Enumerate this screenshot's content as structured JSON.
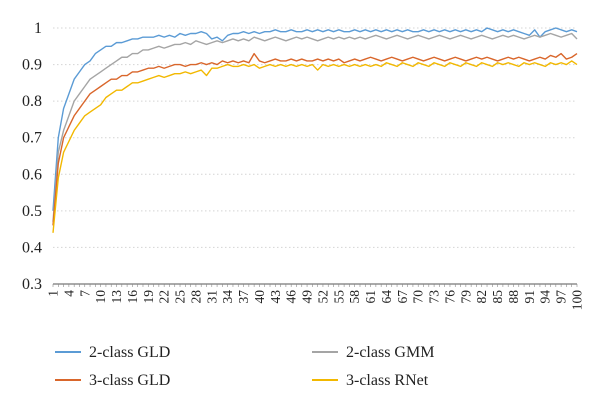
{
  "chart_data": {
    "type": "line",
    "title": "",
    "xlabel": "",
    "ylabel": "",
    "xlim": [
      1,
      100
    ],
    "ylim": [
      0.3,
      1.0
    ],
    "grid": true,
    "legend_position": "bottom",
    "x_tick_labels": [
      "1",
      "4",
      "7",
      "10",
      "13",
      "16",
      "19",
      "22",
      "25",
      "28",
      "31",
      "34",
      "37",
      "40",
      "43",
      "46",
      "49",
      "52",
      "55",
      "58",
      "61",
      "64",
      "67",
      "70",
      "73",
      "76",
      "79",
      "82",
      "85",
      "88",
      "91",
      "94",
      "97",
      "100"
    ],
    "y_tick_labels": [
      "0.3",
      "0.4",
      "0.5",
      "0.6",
      "0.7",
      "0.8",
      "0.9",
      "1"
    ],
    "series": [
      {
        "name": "2-class GLD",
        "color": "#5b9bd5",
        "values": [
          0.5,
          0.7,
          0.78,
          0.82,
          0.86,
          0.88,
          0.9,
          0.91,
          0.93,
          0.94,
          0.95,
          0.95,
          0.96,
          0.96,
          0.965,
          0.97,
          0.97,
          0.975,
          0.975,
          0.975,
          0.98,
          0.975,
          0.98,
          0.975,
          0.985,
          0.98,
          0.985,
          0.985,
          0.99,
          0.985,
          0.97,
          0.975,
          0.965,
          0.98,
          0.985,
          0.985,
          0.99,
          0.985,
          0.99,
          0.985,
          0.99,
          0.99,
          0.995,
          0.99,
          0.99,
          0.995,
          0.99,
          0.99,
          0.995,
          0.99,
          0.995,
          0.99,
          0.995,
          0.99,
          0.995,
          0.99,
          0.99,
          0.995,
          0.99,
          0.995,
          0.99,
          0.995,
          0.99,
          0.995,
          0.99,
          0.995,
          0.99,
          0.995,
          0.99,
          0.99,
          0.995,
          0.99,
          0.995,
          0.99,
          0.995,
          0.99,
          0.995,
          0.99,
          0.995,
          0.99,
          0.995,
          0.99,
          1.0,
          0.995,
          0.99,
          0.995,
          0.99,
          0.995,
          0.99,
          0.985,
          0.98,
          0.995,
          0.975,
          0.99,
          0.995,
          1.0,
          0.995,
          0.99,
          0.995,
          0.99
        ]
      },
      {
        "name": "2-class GMM",
        "color": "#a5a5a5",
        "values": [
          0.47,
          0.66,
          0.72,
          0.76,
          0.8,
          0.82,
          0.84,
          0.86,
          0.87,
          0.88,
          0.89,
          0.9,
          0.91,
          0.92,
          0.92,
          0.93,
          0.93,
          0.94,
          0.94,
          0.945,
          0.95,
          0.945,
          0.95,
          0.955,
          0.955,
          0.96,
          0.955,
          0.965,
          0.96,
          0.955,
          0.96,
          0.965,
          0.96,
          0.965,
          0.97,
          0.965,
          0.97,
          0.965,
          0.975,
          0.97,
          0.965,
          0.97,
          0.975,
          0.97,
          0.965,
          0.97,
          0.975,
          0.97,
          0.975,
          0.97,
          0.965,
          0.97,
          0.975,
          0.97,
          0.975,
          0.97,
          0.975,
          0.97,
          0.975,
          0.97,
          0.975,
          0.98,
          0.975,
          0.97,
          0.975,
          0.98,
          0.975,
          0.97,
          0.975,
          0.98,
          0.975,
          0.97,
          0.975,
          0.98,
          0.975,
          0.97,
          0.975,
          0.98,
          0.975,
          0.97,
          0.975,
          0.98,
          0.975,
          0.97,
          0.975,
          0.98,
          0.975,
          0.98,
          0.975,
          0.97,
          0.975,
          0.98,
          0.975,
          0.98,
          0.985,
          0.98,
          0.975,
          0.98,
          0.985,
          0.97
        ]
      },
      {
        "name": "3-class GLD",
        "color": "#d9662b",
        "values": [
          0.46,
          0.63,
          0.7,
          0.73,
          0.76,
          0.78,
          0.8,
          0.82,
          0.83,
          0.84,
          0.85,
          0.86,
          0.86,
          0.87,
          0.87,
          0.88,
          0.88,
          0.885,
          0.89,
          0.89,
          0.895,
          0.89,
          0.895,
          0.9,
          0.9,
          0.895,
          0.9,
          0.9,
          0.905,
          0.9,
          0.905,
          0.9,
          0.91,
          0.905,
          0.91,
          0.905,
          0.91,
          0.905,
          0.93,
          0.91,
          0.905,
          0.91,
          0.915,
          0.91,
          0.91,
          0.915,
          0.91,
          0.915,
          0.91,
          0.91,
          0.915,
          0.91,
          0.915,
          0.91,
          0.915,
          0.905,
          0.91,
          0.915,
          0.91,
          0.915,
          0.92,
          0.915,
          0.91,
          0.915,
          0.92,
          0.915,
          0.91,
          0.915,
          0.92,
          0.915,
          0.91,
          0.915,
          0.92,
          0.915,
          0.91,
          0.915,
          0.92,
          0.915,
          0.91,
          0.915,
          0.92,
          0.915,
          0.92,
          0.915,
          0.91,
          0.915,
          0.92,
          0.915,
          0.92,
          0.915,
          0.91,
          0.915,
          0.92,
          0.915,
          0.925,
          0.92,
          0.93,
          0.915,
          0.92,
          0.93
        ]
      },
      {
        "name": "3-class RNet",
        "color": "#f2b800",
        "values": [
          0.44,
          0.59,
          0.66,
          0.69,
          0.72,
          0.74,
          0.76,
          0.77,
          0.78,
          0.79,
          0.81,
          0.82,
          0.83,
          0.83,
          0.84,
          0.85,
          0.85,
          0.855,
          0.86,
          0.865,
          0.87,
          0.865,
          0.87,
          0.875,
          0.875,
          0.88,
          0.875,
          0.88,
          0.885,
          0.87,
          0.89,
          0.89,
          0.895,
          0.9,
          0.895,
          0.895,
          0.9,
          0.895,
          0.9,
          0.89,
          0.895,
          0.9,
          0.895,
          0.9,
          0.895,
          0.9,
          0.895,
          0.9,
          0.895,
          0.9,
          0.885,
          0.9,
          0.895,
          0.9,
          0.895,
          0.9,
          0.895,
          0.9,
          0.895,
          0.9,
          0.895,
          0.9,
          0.895,
          0.905,
          0.9,
          0.895,
          0.905,
          0.9,
          0.895,
          0.905,
          0.9,
          0.895,
          0.905,
          0.9,
          0.895,
          0.905,
          0.9,
          0.895,
          0.905,
          0.9,
          0.895,
          0.905,
          0.9,
          0.895,
          0.905,
          0.9,
          0.905,
          0.9,
          0.895,
          0.905,
          0.9,
          0.905,
          0.9,
          0.895,
          0.905,
          0.9,
          0.905,
          0.9,
          0.91,
          0.9
        ]
      }
    ]
  }
}
